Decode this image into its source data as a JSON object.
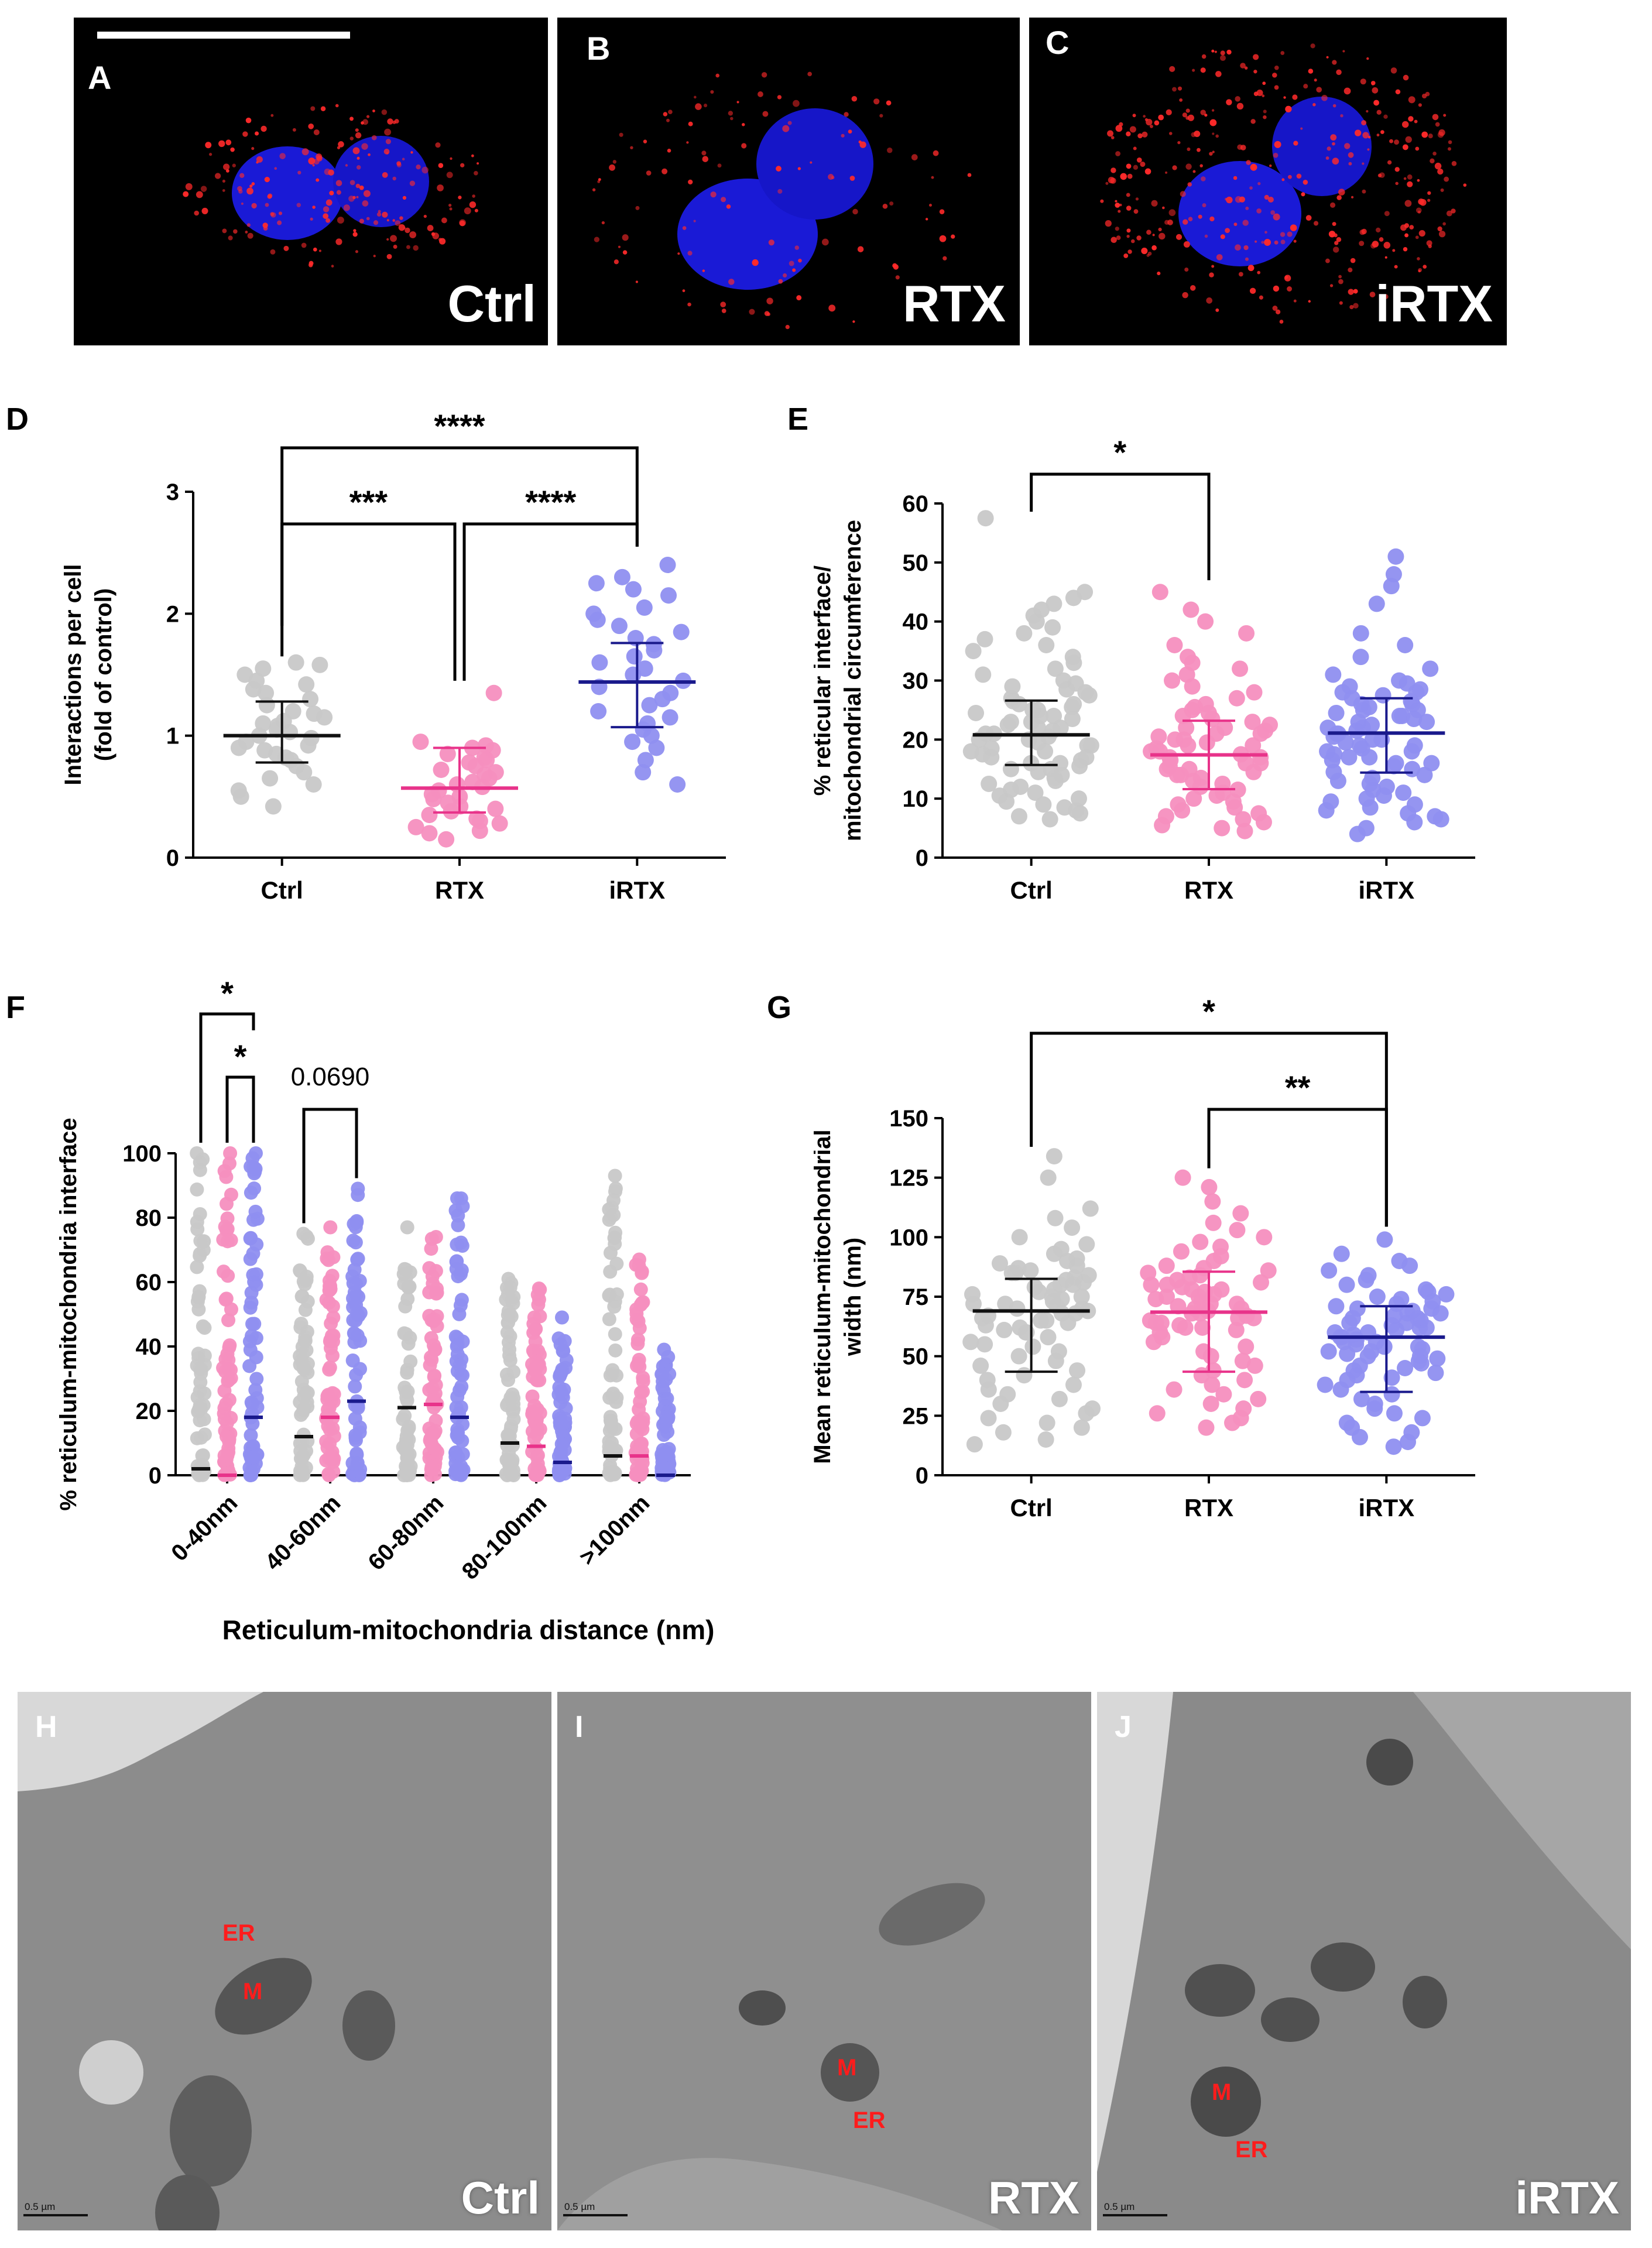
{
  "colors": {
    "ctrl": "#c8c8c8",
    "rtx": "#f58fbf",
    "irtx": "#8f8ff0",
    "ctrl_line": "#111111",
    "rtx_line": "#e8338a",
    "irtx_line": "#1a1a8c",
    "nucleus": "#1a1ad6",
    "puncta": "#ff2a2a",
    "em_red": "#ff1c1c"
  },
  "panels_fluor": [
    {
      "letter": "A",
      "label": "Ctrl"
    },
    {
      "letter": "B",
      "label": "RTX"
    },
    {
      "letter": "C",
      "label": "iRTX"
    }
  ],
  "panels_em": [
    {
      "letter": "H",
      "label": "Ctrl",
      "tags": [
        "ER",
        "M"
      ],
      "scale": "0.5 µm"
    },
    {
      "letter": "I",
      "label": "RTX",
      "tags": [
        "M",
        "ER"
      ],
      "scale": "0.5 µm"
    },
    {
      "letter": "J",
      "label": "iRTX",
      "tags": [
        "M",
        "ER"
      ],
      "scale": "0.5 µm"
    }
  ],
  "chart_data": [
    {
      "id": "D",
      "letter": "D",
      "type": "scatter",
      "ylabel_lines": [
        "Interactions per cell",
        "(fold of control)"
      ],
      "categories": [
        "Ctrl",
        "RTX",
        "iRTX"
      ],
      "ylim": [
        0,
        3
      ],
      "yticks": [
        0,
        1,
        2,
        3
      ],
      "means": [
        1.0,
        0.57,
        1.44
      ],
      "sd_upper": [
        1.28,
        0.9,
        1.76
      ],
      "sd_lower": [
        0.78,
        0.37,
        1.07
      ],
      "points": [
        [
          1.6,
          1.58,
          1.55,
          1.5,
          1.45,
          1.42,
          1.38,
          1.35,
          1.3,
          1.25,
          1.2,
          1.18,
          1.15,
          1.12,
          1.1,
          1.08,
          1.05,
          1.03,
          1.0,
          0.98,
          0.95,
          0.92,
          0.9,
          0.88,
          0.85,
          0.82,
          0.8,
          0.75,
          0.7,
          0.65,
          0.6,
          0.55,
          0.5,
          0.42
        ],
        [
          1.35,
          0.95,
          0.92,
          0.9,
          0.88,
          0.85,
          0.82,
          0.8,
          0.78,
          0.75,
          0.72,
          0.7,
          0.68,
          0.65,
          0.62,
          0.6,
          0.58,
          0.55,
          0.52,
          0.5,
          0.48,
          0.45,
          0.42,
          0.4,
          0.38,
          0.35,
          0.32,
          0.3,
          0.28,
          0.25,
          0.22,
          0.2,
          0.15
        ],
        [
          2.4,
          2.3,
          2.25,
          2.2,
          2.15,
          2.05,
          2.0,
          1.95,
          1.9,
          1.85,
          1.8,
          1.75,
          1.7,
          1.65,
          1.6,
          1.55,
          1.5,
          1.45,
          1.4,
          1.35,
          1.3,
          1.25,
          1.2,
          1.15,
          1.1,
          1.05,
          1.0,
          0.95,
          0.9,
          0.8,
          0.7,
          0.6
        ]
      ],
      "brackets": [
        {
          "from": 0,
          "to": 2,
          "text": "****"
        },
        {
          "from": 0,
          "to": 1,
          "text": "***"
        },
        {
          "from": 1,
          "to": 2,
          "text": "****"
        }
      ]
    },
    {
      "id": "E",
      "letter": "E",
      "type": "scatter",
      "ylabel_lines": [
        "% reticular interface/",
        "mitochondrial circumference"
      ],
      "categories": [
        "Ctrl",
        "RTX",
        "iRTX"
      ],
      "ylim": [
        0,
        60
      ],
      "yticks": [
        0,
        10,
        20,
        30,
        40,
        50,
        60
      ],
      "means": [
        20.8,
        17.4,
        21.1
      ],
      "sd_upper": [
        26.6,
        23.2,
        27.0
      ],
      "sd_lower": [
        15.7,
        11.6,
        14.4
      ],
      "points": [
        [
          57.5,
          45,
          44,
          43,
          42,
          41,
          40,
          39,
          38,
          37,
          36,
          35,
          34,
          33,
          32,
          31,
          30,
          29.5,
          29,
          28.5,
          28,
          27.5,
          27,
          26.5,
          26,
          25.5,
          25,
          24.5,
          24,
          23.5,
          23,
          22.5,
          22,
          21.5,
          21,
          20.5,
          20,
          19.5,
          19,
          18.5,
          18,
          17.5,
          17,
          16.5,
          16,
          15.5,
          15,
          14.5,
          14,
          13.5,
          13,
          12.5,
          12,
          11.5,
          11,
          10.5,
          10,
          9.5,
          9,
          8.5,
          8,
          7.5,
          7,
          6.5,
          22,
          21,
          20,
          19,
          24,
          25,
          18,
          17,
          23,
          26,
          16,
          15
        ],
        [
          45,
          42,
          40,
          38,
          36,
          34,
          33,
          32,
          31,
          30,
          29,
          28,
          27,
          26,
          25.5,
          25,
          24.5,
          24,
          23.5,
          23,
          22.5,
          22,
          21.5,
          21,
          20.5,
          20,
          19.5,
          19,
          18.5,
          18,
          17.5,
          17,
          16.5,
          16,
          15.5,
          15,
          14.5,
          14,
          13.5,
          13,
          12.5,
          12,
          11.5,
          11,
          10.5,
          10,
          9.5,
          9,
          8.5,
          8,
          7.5,
          7,
          6.5,
          6,
          5.5,
          5,
          4.5,
          18,
          17,
          19,
          20,
          16,
          21,
          15,
          14,
          22
        ],
        [
          51,
          48,
          46,
          43,
          38,
          36,
          34,
          32,
          31,
          30,
          29.5,
          29,
          28.5,
          28,
          27.5,
          27,
          26.5,
          26,
          25.5,
          25,
          24.5,
          24,
          23.5,
          23,
          22.5,
          22,
          21.5,
          21,
          20.5,
          20,
          19.5,
          19,
          18.5,
          18,
          17.5,
          17,
          16.5,
          16,
          15.5,
          15,
          14.5,
          14,
          13.5,
          13,
          12.5,
          12,
          11.5,
          11,
          10.5,
          10,
          9.5,
          9,
          8.5,
          8,
          7.5,
          7,
          6.5,
          6,
          5,
          4,
          22,
          21,
          20,
          23,
          24,
          19,
          18,
          25,
          26,
          17,
          16,
          28
        ]
      ],
      "brackets": [
        {
          "from": 0,
          "to": 1,
          "text": "*"
        }
      ]
    },
    {
      "id": "F",
      "letter": "F",
      "type": "scatter",
      "ylabel_lines": [
        "% reticulum-mitochondria interface"
      ],
      "xlabel": "Reticulum-mitochondria distance (nm)",
      "categories": [
        "0-40nm",
        "40-60nm",
        "60-80nm",
        "80-100nm",
        ">100nm"
      ],
      "ylim": [
        0,
        100
      ],
      "yticks": [
        0,
        20,
        40,
        60,
        80,
        100
      ],
      "medians": [
        [
          2,
          0,
          18
        ],
        [
          12,
          18,
          23
        ],
        [
          21,
          22,
          18
        ],
        [
          10,
          9,
          4
        ],
        [
          6,
          6,
          0
        ]
      ],
      "max_values": [
        [
          100,
          100,
          100
        ],
        [
          75,
          77,
          89
        ],
        [
          77,
          74,
          86
        ],
        [
          61,
          58,
          49
        ],
        [
          93,
          67,
          39
        ]
      ],
      "brackets": [
        {
          "group": 0,
          "from": 0,
          "to": 2,
          "text": "*"
        },
        {
          "group": 0,
          "from": 1,
          "to": 2,
          "text": "*"
        },
        {
          "group": 1,
          "from": 0,
          "to": 2,
          "text": "0.0690"
        }
      ]
    },
    {
      "id": "G",
      "letter": "G",
      "type": "scatter",
      "ylabel_lines": [
        "Mean reticulum-mitochondrial",
        "width (nm)"
      ],
      "categories": [
        "Ctrl",
        "RTX",
        "iRTX"
      ],
      "ylim": [
        0,
        150
      ],
      "yticks": [
        0,
        25,
        50,
        75,
        100,
        125,
        150
      ],
      "means": [
        69.0,
        68.5,
        58.0
      ],
      "sd_upper": [
        82.5,
        85.5,
        71.0
      ],
      "sd_lower": [
        43.5,
        43.5,
        35.0
      ],
      "points": [
        [
          134,
          125,
          112,
          108,
          104,
          100,
          97,
          95,
          93,
          91,
          90,
          89,
          88,
          87,
          86,
          85,
          84,
          83,
          82,
          81,
          80,
          79,
          78,
          77,
          76,
          75,
          74,
          73,
          72,
          71,
          70,
          69,
          68,
          67,
          66,
          65,
          64,
          63,
          62,
          61,
          60,
          58,
          56,
          54,
          52,
          50,
          48,
          46,
          44,
          42,
          40,
          38,
          36,
          34,
          32,
          30,
          28,
          26,
          24,
          22,
          20,
          18,
          15,
          13,
          72,
          70,
          68,
          80,
          85,
          60,
          55,
          75,
          65
        ],
        [
          125,
          121,
          115,
          110,
          106,
          103,
          100,
          98,
          96,
          94,
          92,
          90,
          88,
          87,
          86,
          85,
          84,
          83,
          82,
          81,
          80,
          79,
          78,
          77,
          76,
          75,
          74,
          73,
          72,
          71,
          70,
          69,
          68,
          67,
          66,
          65,
          64,
          63,
          62,
          61,
          60,
          58,
          56,
          54,
          52,
          50,
          48,
          46,
          44,
          42,
          40,
          38,
          36,
          34,
          32,
          30,
          28,
          26,
          24,
          22,
          20,
          68,
          70,
          72,
          66,
          75,
          78,
          62,
          64,
          80
        ],
        [
          99,
          93,
          90,
          88,
          86,
          84,
          82,
          80,
          78,
          77,
          76,
          75,
          74,
          73,
          72,
          71,
          70,
          69,
          68,
          67,
          66,
          65,
          64,
          63,
          62,
          61,
          60,
          59,
          58,
          57,
          56,
          55,
          54,
          53,
          52,
          51,
          50,
          49,
          48,
          47,
          46,
          45,
          44,
          43,
          42,
          41,
          40,
          38,
          36,
          34,
          32,
          30,
          28,
          26,
          24,
          22,
          20,
          18,
          16,
          14,
          12,
          58,
          60,
          62,
          56,
          64,
          54,
          66,
          52,
          68,
          50,
          70
        ]
      ],
      "brackets": [
        {
          "from": 0,
          "to": 2,
          "text": "*"
        },
        {
          "from": 1,
          "to": 2,
          "text": "**"
        }
      ]
    }
  ]
}
